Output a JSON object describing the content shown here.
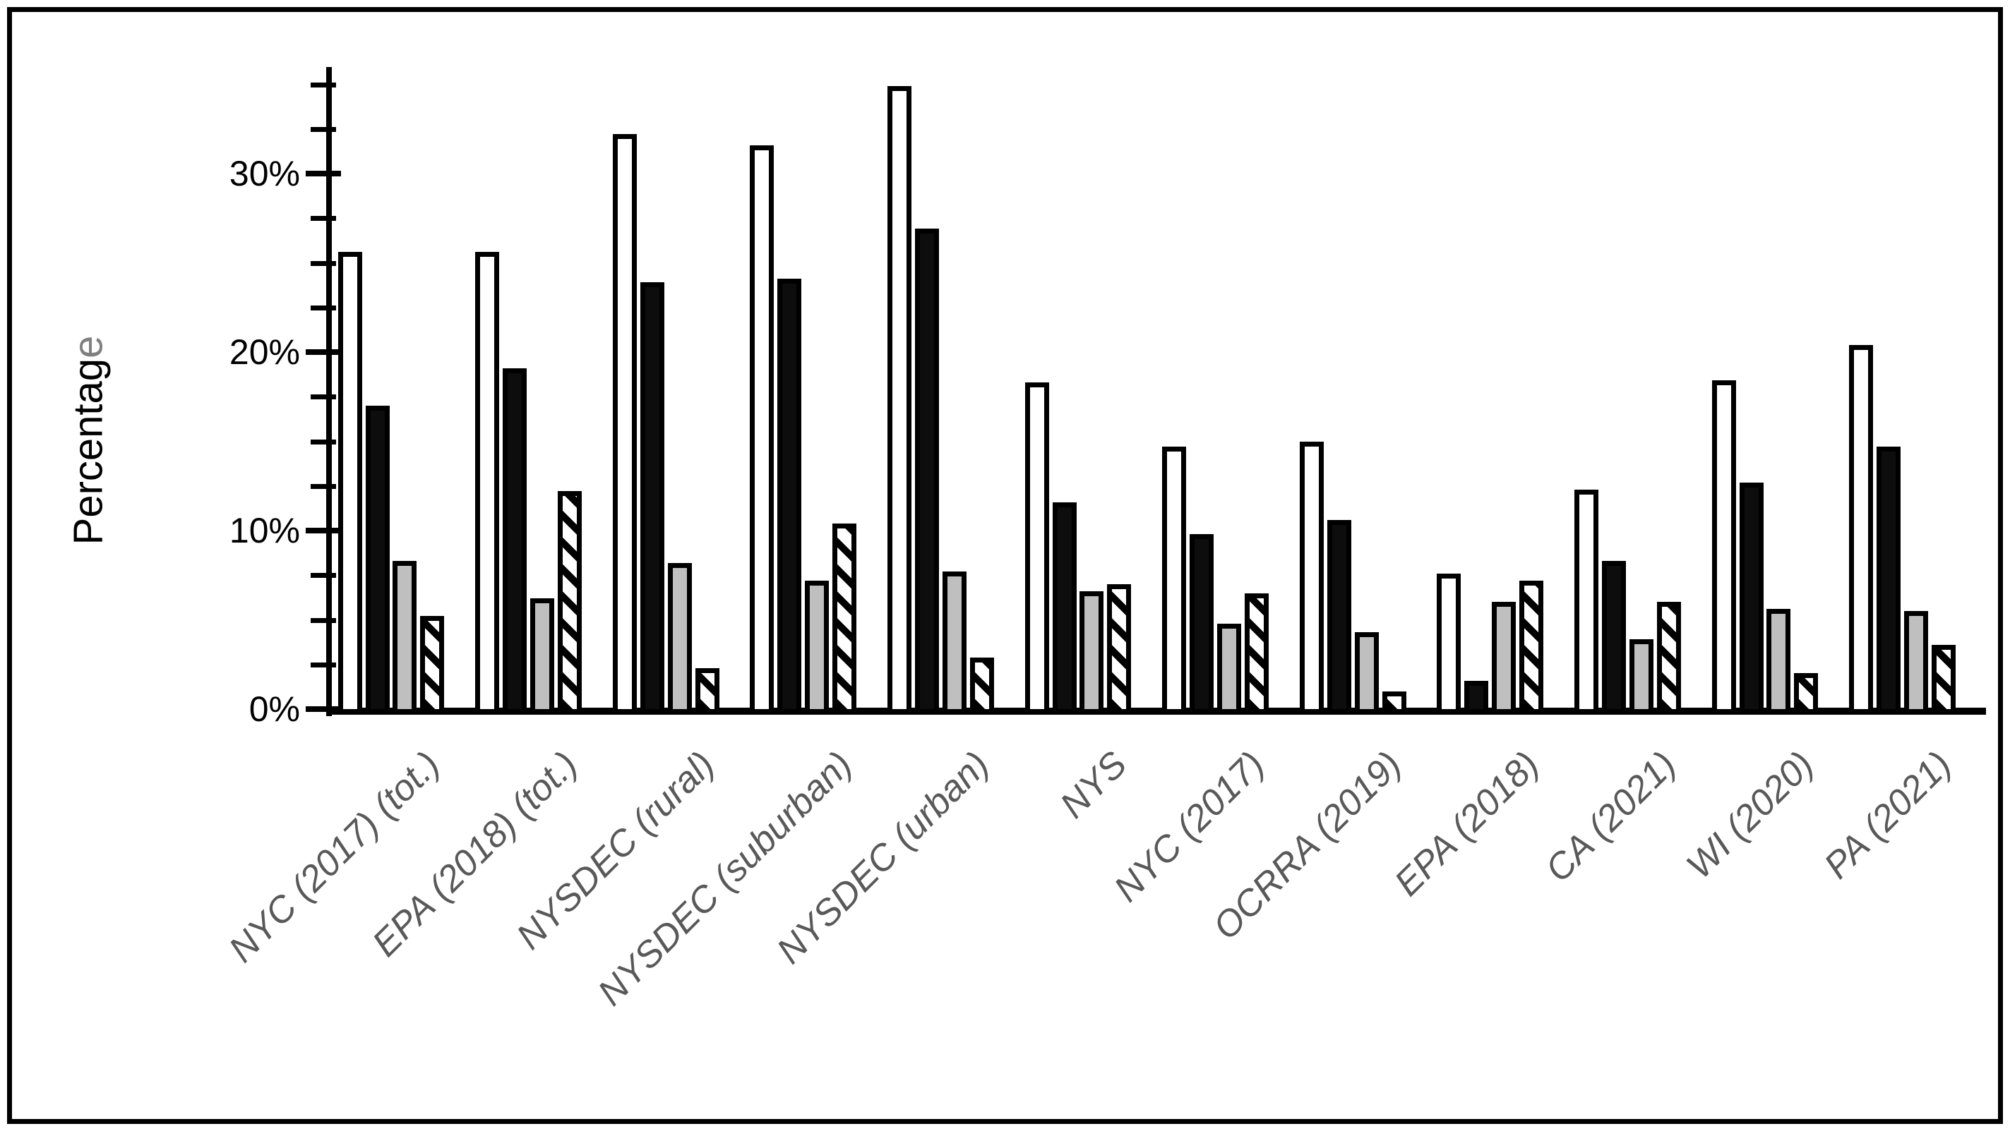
{
  "frame": {
    "background": "#ffffff",
    "border_color": "#000000"
  },
  "chart_data": {
    "type": "bar",
    "title": "",
    "ylabel": "Percentage",
    "ylabel_main": "Percentag",
    "ylabel_tail": "e",
    "ylabel_tail_color": "#7f7f7f",
    "xlabel": "",
    "categories": [
      "NYC (2017) (tot.)",
      "EPA (2018) (tot.)",
      "NYSDEC (rural)",
      "NYSDEC (suburban)",
      "NYSDEC (urban)",
      "NYS",
      "NYC (2017)",
      "OCRRA (2019)",
      "EPA (2018)",
      "CA (2021)",
      "WI (2020)",
      "PA (2021)"
    ],
    "series": [
      {
        "name": "white-outlined-bar",
        "fill_style": "white",
        "values": [
          25.6,
          25.6,
          32.2,
          31.6,
          34.9,
          18.3,
          14.7,
          15.0,
          7.6,
          12.3,
          18.4,
          20.4
        ]
      },
      {
        "name": "black-bar",
        "fill_style": "black",
        "values": [
          17.0,
          19.1,
          23.9,
          24.1,
          26.9,
          11.6,
          9.8,
          10.6,
          1.6,
          8.3,
          12.7,
          14.7
        ]
      },
      {
        "name": "gray-bar",
        "fill_style": "gray",
        "values": [
          8.3,
          6.2,
          8.2,
          7.2,
          7.7,
          6.6,
          4.8,
          4.3,
          6.0,
          3.9,
          5.6,
          5.5
        ]
      },
      {
        "name": "hatched-bar",
        "fill_style": "diagonal-hatch",
        "values": [
          5.2,
          12.2,
          2.3,
          10.4,
          2.9,
          7.0,
          6.5,
          1.0,
          7.2,
          6.0,
          2.0,
          3.6
        ]
      }
    ],
    "yaxis": {
      "major_ticks": [
        {
          "value": 0,
          "label": "0%"
        },
        {
          "value": 10,
          "label": "10%"
        },
        {
          "value": 20,
          "label": "20%"
        },
        {
          "value": 30,
          "label": "30%"
        }
      ],
      "minor_tick_step": 2.5,
      "axis_max": 35,
      "ylim": [
        0,
        36
      ]
    },
    "legend": {
      "visible": false
    },
    "grid": "off",
    "colors": {
      "bar_white": "#ffffff",
      "bar_black": "#0d0d0d",
      "bar_gray": "#bfbfbf",
      "bar_outline": "#000000",
      "axis": "#000000",
      "tick_label": "#000000",
      "category_label": "#595959"
    }
  }
}
